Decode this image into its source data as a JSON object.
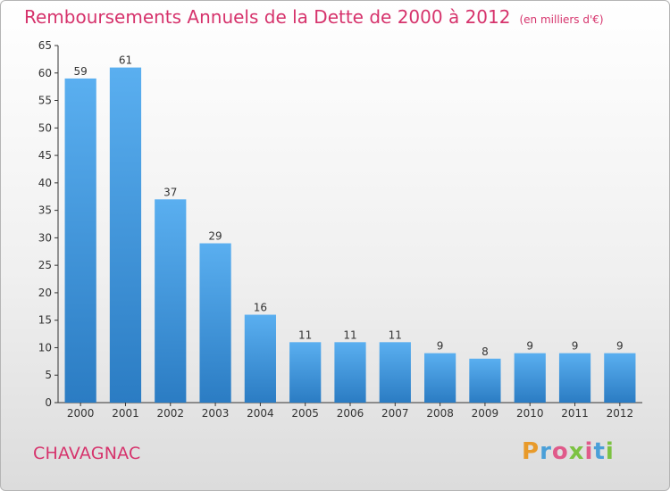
{
  "header": {
    "title": "Remboursements Annuels de la Dette de 2000 à 2012",
    "unit": "(en milliers d'€)"
  },
  "footer": {
    "commune": "CHAVAGNAC",
    "logo_text": "Proxiti"
  },
  "colors": {
    "title": "#d6336c",
    "bar_light": "#5aaff0",
    "bar_dark": "#2b7cc3",
    "axis": "#333333"
  },
  "chart_data": {
    "type": "bar",
    "title": "Remboursements Annuels de la Dette de 2000 à 2012",
    "categories": [
      "2000",
      "2001",
      "2002",
      "2003",
      "2004",
      "2005",
      "2006",
      "2007",
      "2008",
      "2009",
      "2010",
      "2011",
      "2012"
    ],
    "values": [
      59,
      61,
      37,
      29,
      16,
      11,
      11,
      11,
      9,
      8,
      9,
      9,
      9
    ],
    "data_labels": [
      "59",
      "61",
      "37",
      "29",
      "16",
      "11",
      "11",
      "11",
      "9",
      "8",
      "9",
      "9",
      "9"
    ],
    "yticks": [
      0,
      5,
      10,
      15,
      20,
      25,
      30,
      35,
      40,
      45,
      50,
      55,
      60,
      65
    ],
    "ylim": [
      0,
      65
    ],
    "xlabel": "",
    "ylabel": "",
    "grid": false,
    "legend": "none"
  }
}
